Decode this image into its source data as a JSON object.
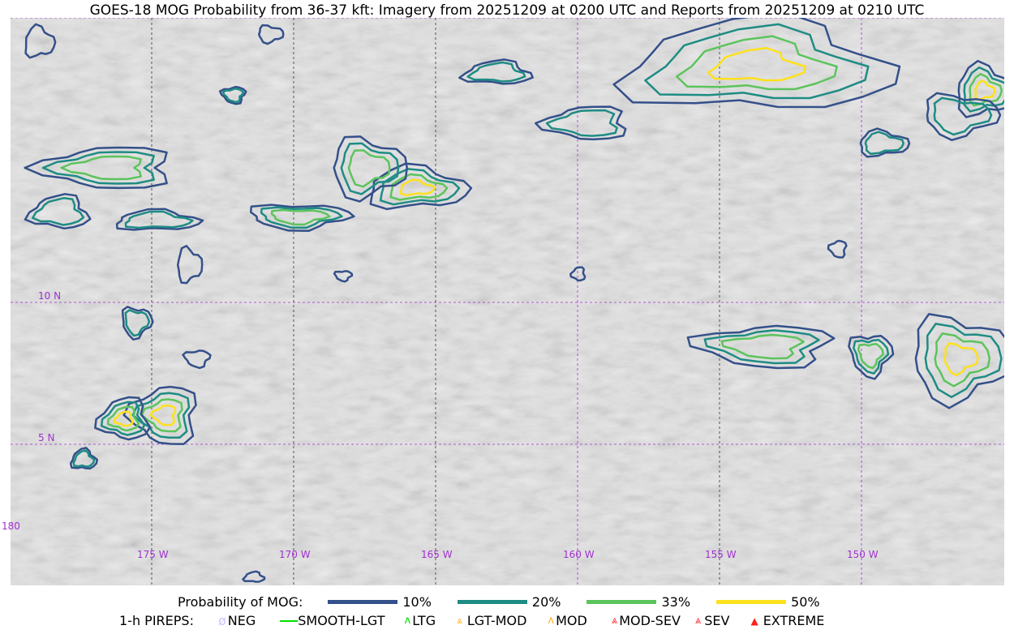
{
  "title": "GOES-18 MOG Probability from 36-37 kft: Imagery from 20251209 at 0200 UTC and Reports from 20251209 at 0210 UTC",
  "map": {
    "grid_color": "#a030d0",
    "lat_labels": [
      "10 N",
      "5 N"
    ],
    "lon_labels": [
      "175 W",
      "170 W",
      "165 W",
      "160 W",
      "155 W",
      "150 W"
    ],
    "edge_label": "180"
  },
  "legend": {
    "probability_label": "Probability of MOG:",
    "levels": [
      {
        "label": "10%",
        "color": "#34508a"
      },
      {
        "label": "20%",
        "color": "#1e8c84"
      },
      {
        "label": "33%",
        "color": "#5cc45c"
      },
      {
        "label": "50%",
        "color": "#fde11c"
      }
    ],
    "pireps_label": "1-h PIREPS:",
    "pireps": [
      {
        "label": "NEG",
        "icon": "neg-icon",
        "color": "#c8c8ff"
      },
      {
        "label": "SMOOTH-LGT",
        "icon": "smooth-lgt-icon",
        "color": "#00e000"
      },
      {
        "label": "LTG",
        "icon": "ltg-icon",
        "color": "#00e000"
      },
      {
        "label": "LGT-MOD",
        "icon": "lgt-mod-icon",
        "color": "#ffb020"
      },
      {
        "label": "MOD",
        "icon": "mod-icon",
        "color": "#ffb020"
      },
      {
        "label": "MOD-SEV",
        "icon": "mod-sev-icon",
        "color": "#ff3030"
      },
      {
        "label": "SEV",
        "icon": "sev-icon",
        "color": "#ff3030"
      },
      {
        "label": "EXTREME",
        "icon": "extreme-icon",
        "color": "#ff2020"
      }
    ]
  }
}
